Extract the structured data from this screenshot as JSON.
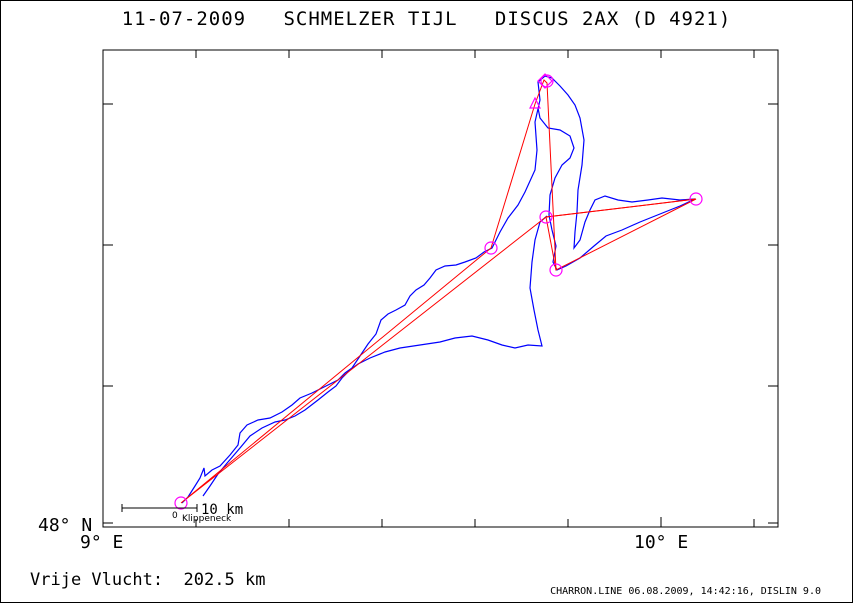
{
  "title": {
    "date": "11-07-2009",
    "pilot": "SCHMELZER TIJL",
    "glider": "DISCUS 2AX (D 4921)"
  },
  "axes": {
    "lat_label": "48° N",
    "lon_label_left": "9° E",
    "lon_label_right": "10° E"
  },
  "scale_bar": {
    "zero": "0",
    "label": "10 km"
  },
  "start_place": "Klippeneck",
  "footer": {
    "distance_label": "Vrije Vlucht:",
    "distance_value": "202.5 km",
    "producer": "CHARRON.LINE 06.08.2009, 14:42:16, DISLIN 9.0"
  },
  "colors": {
    "track": "#0000ff",
    "task_line": "#ff0000",
    "turnpoint": "#ff00ff"
  }
}
